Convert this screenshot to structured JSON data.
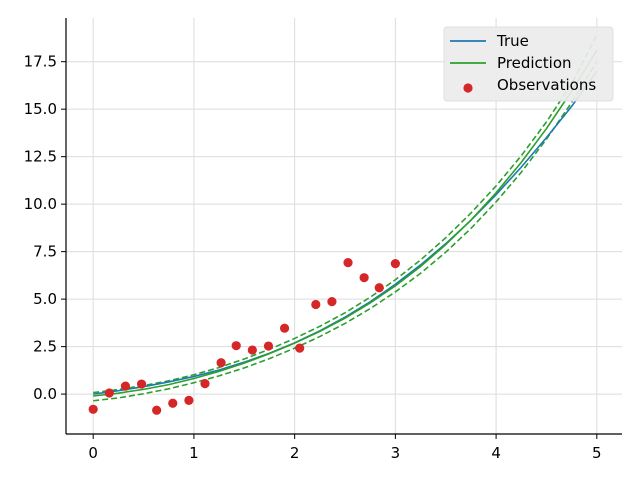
{
  "chart_data": {
    "type": "line",
    "title": "",
    "xlabel": "",
    "ylabel": "",
    "xlim": [
      -0.27,
      5.25
    ],
    "ylim": [
      -2.1,
      19.8
    ],
    "grid": true,
    "legend_position": "top-right",
    "x_ticks": [
      0,
      1,
      2,
      3,
      4,
      5
    ],
    "x_tick_labels": [
      "0",
      "1",
      "2",
      "3",
      "4",
      "5"
    ],
    "y_ticks": [
      0.0,
      2.5,
      5.0,
      7.5,
      10.0,
      12.5,
      15.0,
      17.5
    ],
    "y_tick_labels": [
      "0.0",
      "2.5",
      "5.0",
      "7.5",
      "10.0",
      "12.5",
      "15.0",
      "17.5"
    ],
    "series": [
      {
        "name": "True",
        "kind": "line",
        "color": "#1f77b4",
        "x": [
          0,
          0.25,
          0.5,
          0.75,
          1.0,
          1.25,
          1.5,
          1.75,
          2.0,
          2.25,
          2.5,
          2.75,
          3.0,
          3.25,
          3.5,
          3.75,
          4.0,
          4.25,
          4.5,
          4.75,
          5.0
        ],
        "y": [
          0.0,
          0.18,
          0.39,
          0.64,
          0.93,
          1.27,
          1.68,
          2.15,
          2.7,
          3.33,
          4.05,
          4.86,
          5.78,
          6.8,
          7.92,
          9.15,
          10.5,
          11.95,
          13.5,
          15.15,
          17.0
        ]
      },
      {
        "name": "Prediction",
        "kind": "line",
        "color": "#2ca02c",
        "x": [
          0,
          0.25,
          0.5,
          0.75,
          1.0,
          1.25,
          1.5,
          1.75,
          2.0,
          2.25,
          2.5,
          2.75,
          3.0,
          3.25,
          3.5,
          3.75,
          4.0,
          4.25,
          4.5,
          4.75,
          5.0
        ],
        "y": [
          -0.1,
          0.05,
          0.25,
          0.5,
          0.82,
          1.2,
          1.63,
          2.13,
          2.68,
          3.3,
          4.0,
          4.8,
          5.7,
          6.72,
          7.87,
          9.16,
          10.6,
          12.2,
          13.98,
          15.95,
          18.1
        ]
      },
      {
        "name": "",
        "kind": "band-upper",
        "color": "#2ca02c",
        "x": [
          0,
          0.25,
          0.5,
          0.75,
          1.0,
          1.25,
          1.5,
          1.75,
          2.0,
          2.25,
          2.5,
          2.75,
          3.0,
          3.25,
          3.5,
          3.75,
          4.0,
          4.25,
          4.5,
          4.75,
          5.0
        ],
        "y": [
          0.08,
          0.24,
          0.45,
          0.7,
          1.02,
          1.4,
          1.85,
          2.36,
          2.93,
          3.57,
          4.28,
          5.1,
          6.02,
          7.06,
          8.23,
          9.53,
          10.96,
          12.55,
          14.33,
          16.35,
          18.9
        ]
      },
      {
        "name": "",
        "kind": "band-lower",
        "color": "#2ca02c",
        "x": [
          0,
          0.25,
          0.5,
          0.75,
          1.0,
          1.25,
          1.5,
          1.75,
          2.0,
          2.25,
          2.5,
          2.75,
          3.0,
          3.25,
          3.5,
          3.75,
          4.0,
          4.25,
          4.5,
          4.75,
          5.0
        ],
        "y": [
          -0.35,
          -0.2,
          0.02,
          0.28,
          0.6,
          0.96,
          1.38,
          1.87,
          2.42,
          3.03,
          3.72,
          4.5,
          5.38,
          6.36,
          7.47,
          8.72,
          10.12,
          11.68,
          13.42,
          15.35,
          17.5
        ]
      },
      {
        "name": "Observations",
        "kind": "scatter",
        "color": "#d62728",
        "x": [
          0.0,
          0.16,
          0.32,
          0.48,
          0.63,
          0.79,
          0.95,
          1.11,
          1.27,
          1.42,
          1.58,
          1.74,
          1.9,
          2.05,
          2.21,
          2.37,
          2.53,
          2.69,
          2.84,
          3.0
        ],
        "y": [
          -0.8,
          0.06,
          0.42,
          0.53,
          -0.85,
          -0.48,
          -0.33,
          0.55,
          1.65,
          2.55,
          2.32,
          2.53,
          3.47,
          2.42,
          4.72,
          4.87,
          6.92,
          6.13,
          5.6,
          6.87
        ]
      }
    ]
  }
}
